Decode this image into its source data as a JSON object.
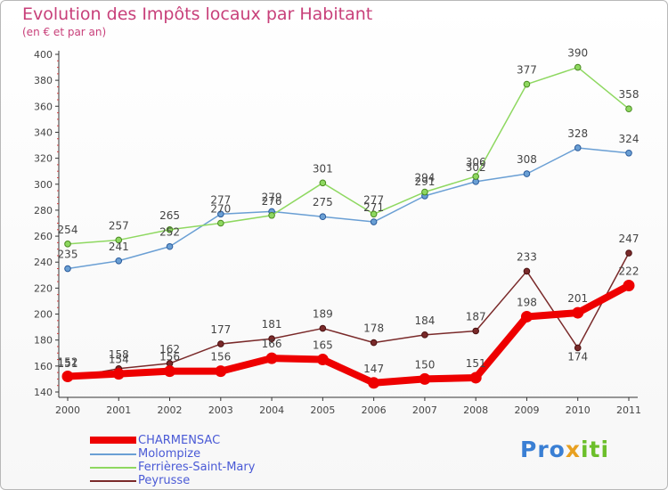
{
  "title": "Evolution des Impôts locaux par Habitant",
  "subtitle": "(en € et par an)",
  "logo_text": "Proxiti",
  "chart_data": {
    "type": "line",
    "title": "Evolution des Impôts locaux par Habitant",
    "subtitle": "(en € et par an)",
    "xlabel": "",
    "ylabel": "",
    "x": [
      "2000",
      "2001",
      "2002",
      "2003",
      "2004",
      "2005",
      "2006",
      "2007",
      "2008",
      "2009",
      "2010",
      "2011"
    ],
    "ylim": [
      140,
      400
    ],
    "yticks": [
      140,
      160,
      180,
      200,
      220,
      240,
      260,
      280,
      300,
      320,
      340,
      360,
      380,
      400
    ],
    "grid": false,
    "legend_position": "bottom-left",
    "series": [
      {
        "name": "CHARMENSAC",
        "color": "#ee0000",
        "values": [
          152,
          154,
          156,
          156,
          166,
          165,
          147,
          150,
          151,
          198,
          201,
          222
        ]
      },
      {
        "name": "Molompize",
        "color": "#6a9fd4",
        "values": [
          235,
          241,
          252,
          277,
          279,
          275,
          271,
          291,
          302,
          308,
          328,
          324
        ]
      },
      {
        "name": "Ferrières-Saint-Mary",
        "color": "#8ed860",
        "values": [
          254,
          257,
          265,
          270,
          276,
          301,
          277,
          294,
          306,
          377,
          390,
          358
        ]
      },
      {
        "name": "Peyrusse",
        "color": "#7a2a2a",
        "values": [
          151,
          158,
          162,
          177,
          181,
          189,
          178,
          184,
          187,
          233,
          174,
          247
        ]
      }
    ]
  }
}
